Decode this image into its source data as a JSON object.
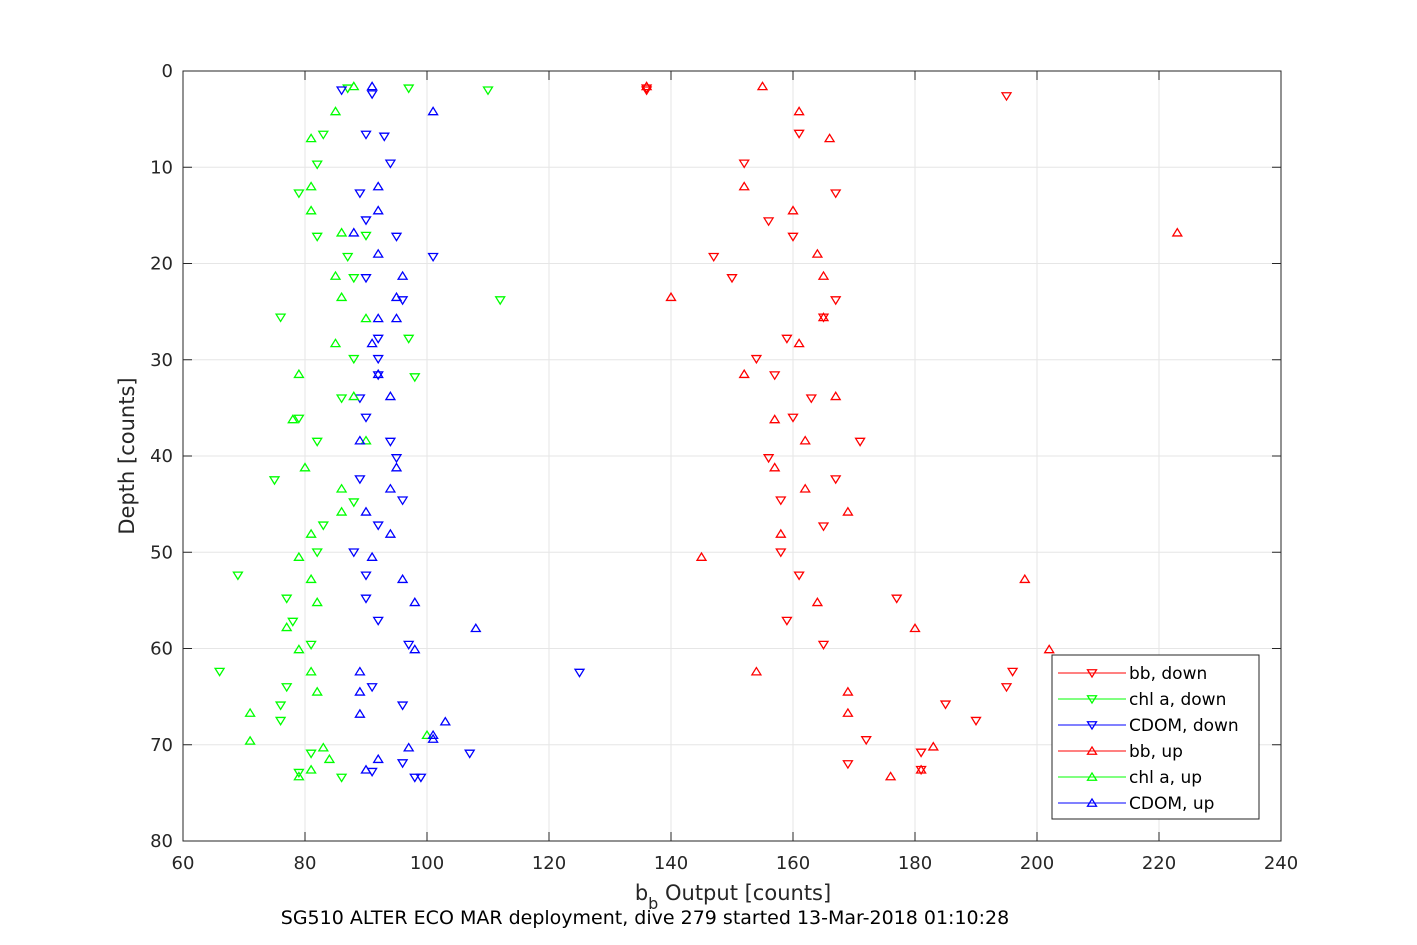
{
  "colors": {
    "bb": "#ff0000",
    "chl": "#00ff00",
    "cdom": "#0000ff",
    "grid": "#e6e6e6",
    "axis": "#262626"
  },
  "caption": "SG510 ALTER ECO MAR deployment, dive 279 started 13-Mar-2018 01:10:28",
  "chart_data": {
    "type": "scatter",
    "ylabel": "Depth [counts]",
    "xlabel": {
      "prefix": "b",
      "subscript": "b",
      "suffix": " Output [counts]"
    },
    "xlim": [
      60,
      240
    ],
    "ylim": [
      0,
      80
    ],
    "y_reversed": true,
    "grid": true,
    "legend_position": "lower-right",
    "xticks": [
      60,
      80,
      100,
      120,
      140,
      160,
      180,
      200,
      220,
      240
    ],
    "yticks": [
      0,
      10,
      20,
      30,
      40,
      50,
      60,
      70,
      80
    ],
    "series": [
      {
        "name": "bb, down",
        "color": "#ff0000",
        "marker": "triangle-down",
        "points": [
          [
            136,
            1.8
          ],
          [
            136,
            2.0
          ],
          [
            195,
            2.6
          ],
          [
            161,
            6.5
          ],
          [
            152,
            9.6
          ],
          [
            167,
            12.7
          ],
          [
            156,
            15.6
          ],
          [
            160,
            17.2
          ],
          [
            147,
            19.3
          ],
          [
            150,
            21.5
          ],
          [
            167,
            23.8
          ],
          [
            165,
            25.6
          ],
          [
            159,
            27.8
          ],
          [
            154,
            29.9
          ],
          [
            157,
            31.6
          ],
          [
            163,
            34.0
          ],
          [
            160,
            36.0
          ],
          [
            171,
            38.5
          ],
          [
            156,
            40.2
          ],
          [
            167,
            42.4
          ],
          [
            158,
            44.6
          ],
          [
            165,
            47.3
          ],
          [
            158,
            50.0
          ],
          [
            161,
            52.4
          ],
          [
            177,
            54.8
          ],
          [
            159,
            57.1
          ],
          [
            165,
            59.6
          ],
          [
            196,
            62.4
          ],
          [
            195,
            64.0
          ],
          [
            185,
            65.8
          ],
          [
            190,
            67.5
          ],
          [
            172,
            69.5
          ],
          [
            181,
            70.8
          ],
          [
            169,
            72.0
          ],
          [
            181,
            72.6
          ]
        ]
      },
      {
        "name": "chl a, down",
        "color": "#00ff00",
        "marker": "triangle-down",
        "points": [
          [
            87,
            1.8
          ],
          [
            97,
            1.8
          ],
          [
            110,
            2.0
          ],
          [
            83,
            6.6
          ],
          [
            82,
            9.7
          ],
          [
            79,
            12.7
          ],
          [
            82,
            17.2
          ],
          [
            87,
            19.3
          ],
          [
            90,
            17.1
          ],
          [
            88,
            21.5
          ],
          [
            112,
            23.8
          ],
          [
            76,
            25.6
          ],
          [
            97,
            27.8
          ],
          [
            88,
            29.9
          ],
          [
            98,
            31.8
          ],
          [
            86,
            34.0
          ],
          [
            79,
            36.1
          ],
          [
            82,
            38.5
          ],
          [
            75,
            42.5
          ],
          [
            88,
            44.8
          ],
          [
            83,
            47.2
          ],
          [
            82,
            50.0
          ],
          [
            69,
            52.4
          ],
          [
            77,
            54.8
          ],
          [
            78,
            57.2
          ],
          [
            81,
            59.6
          ],
          [
            66,
            62.4
          ],
          [
            77,
            64.0
          ],
          [
            76,
            65.9
          ],
          [
            76,
            67.5
          ],
          [
            81,
            70.9
          ],
          [
            79,
            72.9
          ],
          [
            86,
            73.4
          ]
        ]
      },
      {
        "name": "CDOM, down",
        "color": "#0000ff",
        "marker": "triangle-down",
        "points": [
          [
            86,
            2.0
          ],
          [
            91,
            2.4
          ],
          [
            90,
            6.6
          ],
          [
            93,
            6.8
          ],
          [
            94,
            9.6
          ],
          [
            89,
            12.7
          ],
          [
            90,
            15.5
          ],
          [
            95,
            17.2
          ],
          [
            101,
            19.3
          ],
          [
            90,
            21.5
          ],
          [
            96,
            23.8
          ],
          [
            92,
            27.8
          ],
          [
            92,
            29.9
          ],
          [
            92,
            31.6
          ],
          [
            89,
            34.0
          ],
          [
            90,
            36.0
          ],
          [
            94,
            38.5
          ],
          [
            95,
            40.2
          ],
          [
            89,
            42.4
          ],
          [
            96,
            44.6
          ],
          [
            92,
            47.2
          ],
          [
            88,
            50.0
          ],
          [
            90,
            52.4
          ],
          [
            90,
            54.8
          ],
          [
            92,
            57.1
          ],
          [
            97,
            59.6
          ],
          [
            125,
            62.5
          ],
          [
            91,
            64.0
          ],
          [
            96,
            65.9
          ],
          [
            107,
            70.9
          ],
          [
            91,
            72.8
          ],
          [
            96,
            71.9
          ],
          [
            98,
            73.4
          ],
          [
            99,
            73.4
          ]
        ]
      },
      {
        "name": "bb, up",
        "color": "#ff0000",
        "marker": "triangle-up",
        "points": [
          [
            136,
            1.6
          ],
          [
            155,
            1.6
          ],
          [
            161,
            4.2
          ],
          [
            166,
            7.0
          ],
          [
            152,
            12.0
          ],
          [
            160,
            14.5
          ],
          [
            223,
            16.8
          ],
          [
            164,
            19.0
          ],
          [
            165,
            21.3
          ],
          [
            140,
            23.5
          ],
          [
            165,
            25.6
          ],
          [
            161,
            28.3
          ],
          [
            152,
            31.5
          ],
          [
            167,
            33.8
          ],
          [
            157,
            36.2
          ],
          [
            162,
            38.4
          ],
          [
            157,
            41.2
          ],
          [
            162,
            43.4
          ],
          [
            169,
            45.8
          ],
          [
            158,
            48.1
          ],
          [
            145,
            50.5
          ],
          [
            198,
            52.8
          ],
          [
            164,
            55.2
          ],
          [
            180,
            57.9
          ],
          [
            202,
            60.1
          ],
          [
            154,
            62.4
          ],
          [
            169,
            64.5
          ],
          [
            169,
            66.7
          ],
          [
            183,
            70.2
          ],
          [
            176,
            73.3
          ],
          [
            181,
            72.6
          ]
        ]
      },
      {
        "name": "chl a, up",
        "color": "#00ff00",
        "marker": "triangle-up",
        "points": [
          [
            88,
            1.6
          ],
          [
            85,
            4.2
          ],
          [
            81,
            7.0
          ],
          [
            81,
            12.0
          ],
          [
            81,
            14.5
          ],
          [
            86,
            16.8
          ],
          [
            85,
            21.3
          ],
          [
            86,
            23.5
          ],
          [
            90,
            25.7
          ],
          [
            85,
            28.3
          ],
          [
            79,
            31.5
          ],
          [
            88,
            33.8
          ],
          [
            78,
            36.2
          ],
          [
            90,
            38.4
          ],
          [
            80,
            41.2
          ],
          [
            86,
            43.4
          ],
          [
            86,
            45.8
          ],
          [
            81,
            48.1
          ],
          [
            79,
            50.5
          ],
          [
            81,
            52.8
          ],
          [
            82,
            55.2
          ],
          [
            77,
            57.8
          ],
          [
            79,
            60.1
          ],
          [
            81,
            62.4
          ],
          [
            82,
            64.5
          ],
          [
            71,
            66.7
          ],
          [
            71,
            69.6
          ],
          [
            83,
            70.3
          ],
          [
            84,
            71.5
          ],
          [
            81,
            72.6
          ],
          [
            79,
            73.3
          ],
          [
            100,
            69.0
          ]
        ]
      },
      {
        "name": "CDOM, up",
        "color": "#0000ff",
        "marker": "triangle-up",
        "points": [
          [
            91,
            1.6
          ],
          [
            101,
            4.2
          ],
          [
            92,
            12.0
          ],
          [
            92,
            14.5
          ],
          [
            88,
            16.8
          ],
          [
            92,
            19.0
          ],
          [
            96,
            21.3
          ],
          [
            95,
            23.5
          ],
          [
            92,
            25.7
          ],
          [
            95,
            25.7
          ],
          [
            91,
            28.3
          ],
          [
            92,
            31.5
          ],
          [
            94,
            33.8
          ],
          [
            89,
            38.4
          ],
          [
            95,
            41.2
          ],
          [
            94,
            43.4
          ],
          [
            90,
            45.8
          ],
          [
            94,
            48.1
          ],
          [
            91,
            50.5
          ],
          [
            96,
            52.8
          ],
          [
            98,
            55.2
          ],
          [
            108,
            57.9
          ],
          [
            98,
            60.1
          ],
          [
            89,
            62.4
          ],
          [
            89,
            64.5
          ],
          [
            89,
            66.8
          ],
          [
            103,
            67.6
          ],
          [
            101,
            69.0
          ],
          [
            101,
            69.4
          ],
          [
            97,
            70.3
          ],
          [
            92,
            71.5
          ],
          [
            90,
            72.6
          ]
        ]
      }
    ]
  }
}
